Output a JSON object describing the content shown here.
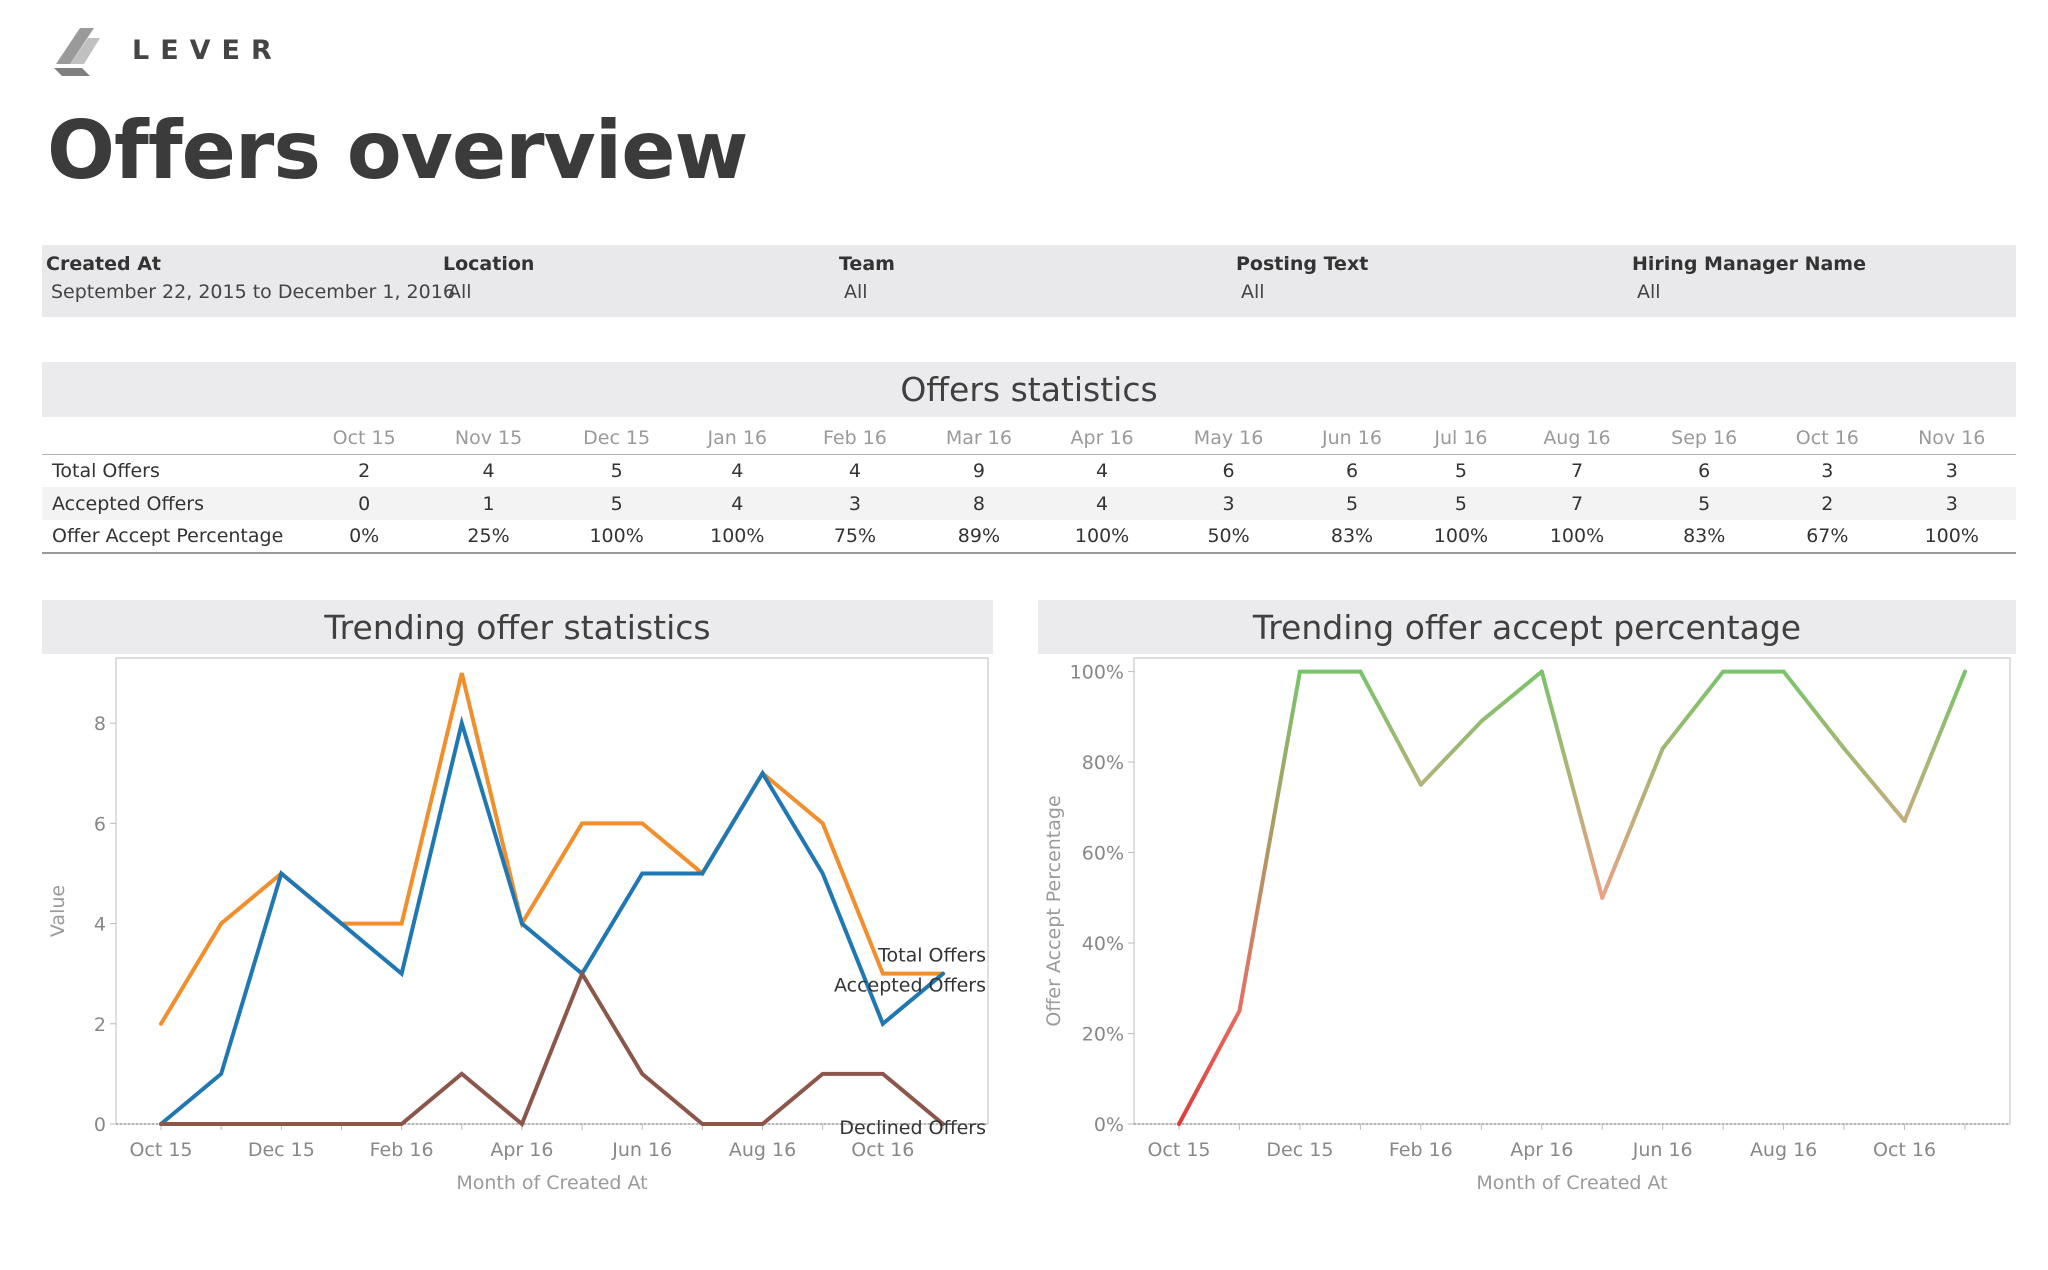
{
  "brand": {
    "name": "LEVER",
    "logo_icon": "lever-logo-icon"
  },
  "page": {
    "title": "Offers overview"
  },
  "filters": [
    {
      "label": "Created At",
      "value": "September 22, 2015 to December 1, 2016"
    },
    {
      "label": "Location",
      "value": "All"
    },
    {
      "label": "Team",
      "value": "All"
    },
    {
      "label": "Posting Text",
      "value": "All"
    },
    {
      "label": "Hiring Manager Name",
      "value": "All"
    }
  ],
  "stats": {
    "title": "Offers statistics",
    "months": [
      "Oct 15",
      "Nov 15",
      "Dec 15",
      "Jan 16",
      "Feb 16",
      "Mar 16",
      "Apr 16",
      "May 16",
      "Jun 16",
      "Jul 16",
      "Aug 16",
      "Sep 16",
      "Oct 16",
      "Nov 16"
    ],
    "rows": [
      {
        "label": "Total Offers",
        "values": [
          "2",
          "4",
          "5",
          "4",
          "4",
          "9",
          "4",
          "6",
          "6",
          "5",
          "7",
          "6",
          "3",
          "3"
        ]
      },
      {
        "label": "Accepted Offers",
        "values": [
          "0",
          "1",
          "5",
          "4",
          "3",
          "8",
          "4",
          "3",
          "5",
          "5",
          "7",
          "5",
          "2",
          "3"
        ]
      },
      {
        "label": "Offer Accept Percentage",
        "values": [
          "0%",
          "25%",
          "100%",
          "100%",
          "75%",
          "89%",
          "100%",
          "50%",
          "83%",
          "100%",
          "100%",
          "83%",
          "67%",
          "100%"
        ]
      }
    ]
  },
  "chart_data": [
    {
      "type": "line",
      "title": "Trending offer statistics",
      "xlabel": "Month of Created At",
      "ylabel": "Value",
      "x": [
        "Oct 15",
        "Nov 15",
        "Dec 15",
        "Jan 16",
        "Feb 16",
        "Mar 16",
        "Apr 16",
        "May 16",
        "Jun 16",
        "Jul 16",
        "Aug 16",
        "Sep 16",
        "Oct 16",
        "Nov 16"
      ],
      "x_tick_labels": [
        "Oct 15",
        "",
        "Dec 15",
        "",
        "Feb 16",
        "",
        "Apr 16",
        "",
        "Jun 16",
        "",
        "Aug 16",
        "",
        "Oct 16",
        ""
      ],
      "ylim": [
        0,
        9.3
      ],
      "y_ticks": [
        "0",
        "2",
        "4",
        "6",
        "8"
      ],
      "grid": false,
      "series": [
        {
          "name": "Total Offers",
          "color": "#f28e2b",
          "values": [
            2,
            4,
            5,
            4,
            4,
            9,
            4,
            6,
            6,
            5,
            7,
            6,
            3,
            3
          ]
        },
        {
          "name": "Accepted Offers",
          "color": "#1f77b4",
          "values": [
            0,
            1,
            5,
            4,
            3,
            8,
            4,
            3,
            5,
            5,
            7,
            5,
            2,
            3
          ]
        },
        {
          "name": "Declined Offers",
          "color": "#8c564b",
          "values": [
            0,
            0,
            0,
            0,
            0,
            1,
            0,
            3,
            1,
            0,
            0,
            1,
            1,
            0
          ]
        }
      ]
    },
    {
      "type": "line",
      "title": "Trending offer accept percentage",
      "xlabel": "Month of Created At",
      "ylabel": "Offer Accept Percentage",
      "x": [
        "Oct 15",
        "Nov 15",
        "Dec 15",
        "Jan 16",
        "Feb 16",
        "Mar 16",
        "Apr 16",
        "May 16",
        "Jun 16",
        "Jul 16",
        "Aug 16",
        "Sep 16",
        "Oct 16",
        "Nov 16"
      ],
      "x_tick_labels": [
        "Oct 15",
        "",
        "Dec 15",
        "",
        "Feb 16",
        "",
        "Apr 16",
        "",
        "Jun 16",
        "",
        "Aug 16",
        "",
        "Oct 16",
        ""
      ],
      "ylim": [
        0,
        103
      ],
      "y_ticks": [
        "0%",
        "20%",
        "40%",
        "60%",
        "80%",
        "100%"
      ],
      "grid": false,
      "color_scale": {
        "low": "#e03a3a",
        "mid": "#eba185",
        "high": "#79c46a"
      },
      "series": [
        {
          "name": "",
          "values": [
            0,
            25,
            100,
            100,
            75,
            89,
            100,
            50,
            83,
            100,
            100,
            83,
            67,
            100
          ]
        }
      ]
    }
  ]
}
